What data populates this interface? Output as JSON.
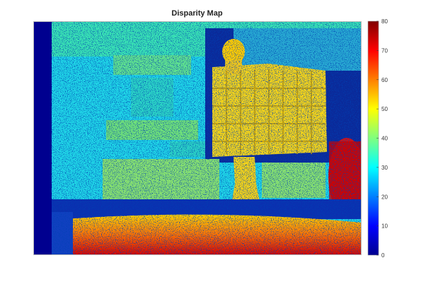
{
  "chart_data": {
    "type": "heatmap",
    "title": "Disparity Map",
    "colormap": "jet",
    "colorbar": {
      "min": 0,
      "max": 80,
      "ticks": [
        0,
        10,
        20,
        30,
        40,
        50,
        60,
        70,
        80
      ],
      "placement": "right"
    },
    "xlabel": "",
    "ylabel": ""
  }
}
